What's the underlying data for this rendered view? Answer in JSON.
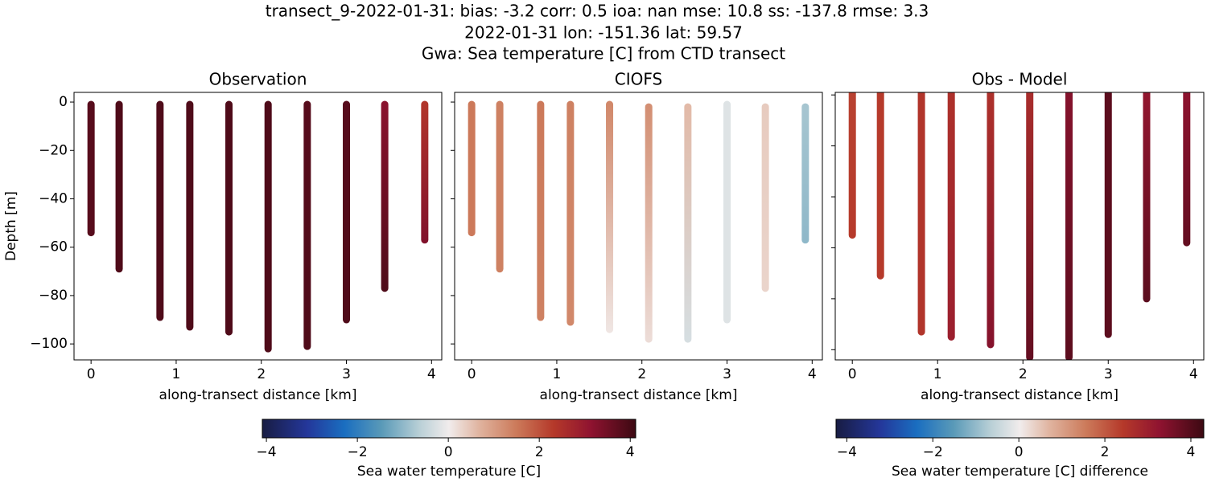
{
  "title": [
    "transect_9-2022-01-31: bias: -3.2  corr: 0.5  ioa: nan  mse: 10.8  ss: -137.8  rmse: 3.3",
    "2022-01-31 lon: -151.36 lat: 59.57",
    "Gwa: Sea temperature [C] from CTD transect"
  ],
  "chart_data": [
    {
      "type": "scatter",
      "title": "Observation",
      "xlabel": "along-transect distance [km]",
      "ylabel": "Depth [m]",
      "xlim": [
        -0.2,
        4.12
      ],
      "xticks": [
        0,
        1,
        2,
        3,
        4
      ],
      "ylim": [
        -106.6,
        4
      ],
      "yticks": [
        {
          "value": -100,
          "label": "−100"
        },
        {
          "value": -80,
          "label": "−80"
        },
        {
          "value": -60,
          "label": "−60"
        },
        {
          "value": -40,
          "label": "−40"
        },
        {
          "value": -20,
          "label": "−20"
        },
        0
      ],
      "show_ytick_labels": true,
      "profiles": [
        {
          "x": 0,
          "top": -1,
          "bottom": -54,
          "value_top": 3.8,
          "value_bottom": 3.8
        },
        {
          "x": 0.33,
          "top": -1,
          "bottom": -69,
          "value_top": 3.9,
          "value_bottom": 3.9
        },
        {
          "x": 0.81,
          "top": -1,
          "bottom": -89,
          "value_top": 3.9,
          "value_bottom": 3.9
        },
        {
          "x": 1.16,
          "top": -1,
          "bottom": -93,
          "value_top": 3.9,
          "value_bottom": 3.9
        },
        {
          "x": 1.62,
          "top": -1,
          "bottom": -95,
          "value_top": 3.9,
          "value_bottom": 3.9
        },
        {
          "x": 2.08,
          "top": -1,
          "bottom": -102,
          "value_top": 3.9,
          "value_bottom": 3.9
        },
        {
          "x": 2.54,
          "top": -1,
          "bottom": -101,
          "value_top": 3.8,
          "value_bottom": 3.9
        },
        {
          "x": 3.0,
          "top": -1,
          "bottom": -90,
          "value_top": 3.8,
          "value_bottom": 3.9
        },
        {
          "x": 3.45,
          "top": -1,
          "bottom": -77,
          "value_top": 3.2,
          "value_bottom": 3.9
        },
        {
          "x": 3.92,
          "top": -1,
          "bottom": -57,
          "value_top": 2.4,
          "value_bottom": 3.3
        }
      ]
    },
    {
      "type": "scatter",
      "title": "CIOFS",
      "xlabel": "along-transect distance [km]",
      "xlim": [
        -0.2,
        4.12
      ],
      "xticks": [
        0,
        1,
        2,
        3,
        4
      ],
      "ylim": [
        -106.6,
        4
      ],
      "yticks": [
        -100,
        -80,
        -60,
        -40,
        -20,
        0
      ],
      "show_ytick_labels": false,
      "profiles": [
        {
          "x": 0,
          "top": -1,
          "bottom": -54,
          "value_top": 1.5,
          "value_bottom": 1.5
        },
        {
          "x": 0.33,
          "top": -1,
          "bottom": -69,
          "value_top": 1.4,
          "value_bottom": 1.4
        },
        {
          "x": 0.81,
          "top": -1,
          "bottom": -89,
          "value_top": 1.5,
          "value_bottom": 1.4
        },
        {
          "x": 1.16,
          "top": -1,
          "bottom": -91,
          "value_top": 1.4,
          "value_bottom": 1.3
        },
        {
          "x": 1.62,
          "top": -1,
          "bottom": -94,
          "value_top": 1.3,
          "value_bottom": 0.1
        },
        {
          "x": 2.08,
          "top": -2,
          "bottom": -98,
          "value_top": 1.2,
          "value_bottom": 0.2
        },
        {
          "x": 2.54,
          "top": -2,
          "bottom": -98,
          "value_top": 0.6,
          "value_bottom": -0.3
        },
        {
          "x": 3.0,
          "top": -1,
          "bottom": -90,
          "value_top": -0.2,
          "value_bottom": -0.2
        },
        {
          "x": 3.45,
          "top": -2,
          "bottom": -77,
          "value_top": 0.4,
          "value_bottom": 0.3
        },
        {
          "x": 3.92,
          "top": -2,
          "bottom": -57,
          "value_top": -0.8,
          "value_bottom": -1.0
        }
      ]
    },
    {
      "type": "scatter",
      "title": "Obs - Model",
      "xlabel": "along-transect distance [km]",
      "xlim": [
        -0.2,
        4.12
      ],
      "xticks": [
        0,
        1,
        2,
        3,
        4
      ],
      "ylim": [
        -104,
        1
      ],
      "yticks": [
        -100,
        -80,
        -60,
        -40,
        -20,
        0
      ],
      "show_ytick_labels": false,
      "profiles": [
        {
          "x": 0,
          "top": 1,
          "bottom": -55,
          "value_top": 2.3,
          "value_bottom": 2.4
        },
        {
          "x": 0.33,
          "top": 1,
          "bottom": -71,
          "value_top": 2.4,
          "value_bottom": 2.4
        },
        {
          "x": 0.81,
          "top": 1,
          "bottom": -93,
          "value_top": 2.5,
          "value_bottom": 2.5
        },
        {
          "x": 1.16,
          "top": 1,
          "bottom": -95,
          "value_top": 2.6,
          "value_bottom": 3.0
        },
        {
          "x": 1.62,
          "top": 1,
          "bottom": -98,
          "value_top": 2.6,
          "value_bottom": 3.4
        },
        {
          "x": 2.08,
          "top": 1,
          "bottom": -103,
          "value_top": 2.7,
          "value_bottom": 3.8
        },
        {
          "x": 2.54,
          "top": 1,
          "bottom": -103,
          "value_top": 3.4,
          "value_bottom": 3.9
        },
        {
          "x": 3.0,
          "top": 1,
          "bottom": -94,
          "value_top": 3.9,
          "value_bottom": 3.9
        },
        {
          "x": 3.45,
          "top": 1,
          "bottom": -80,
          "value_top": 3.2,
          "value_bottom": 3.9
        },
        {
          "x": 3.92,
          "top": 1,
          "bottom": -58,
          "value_top": 3.3,
          "value_bottom": 3.8
        }
      ]
    }
  ],
  "colorbars": [
    {
      "label": "Sea water temperature [C]",
      "xlim": [
        -4.09,
        4.12
      ],
      "xticks": [
        {
          "value": -4,
          "label": "−4"
        },
        {
          "value": -2,
          "label": "−2"
        },
        0,
        2,
        4
      ]
    },
    {
      "label": "Sea water temperature [C] difference",
      "xlim": [
        -4.25,
        4.3
      ],
      "xticks": [
        {
          "value": -4,
          "label": "−4"
        },
        {
          "value": -2,
          "label": "−2"
        },
        0,
        2,
        4
      ]
    }
  ]
}
